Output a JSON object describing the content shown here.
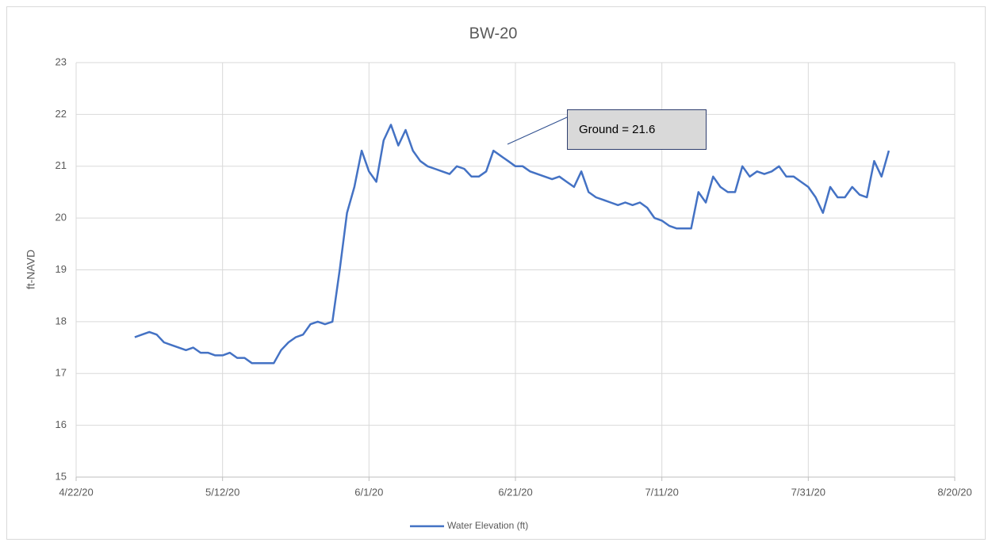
{
  "chart_data": {
    "type": "line",
    "title": "BW-20",
    "ylabel": "ft-NAVD",
    "annotation": "Ground = 21.6",
    "x": [
      "4/30/20",
      "5/1/20",
      "5/2/20",
      "5/3/20",
      "5/4/20",
      "5/5/20",
      "5/6/20",
      "5/7/20",
      "5/8/20",
      "5/9/20",
      "5/10/20",
      "5/11/20",
      "5/12/20",
      "5/13/20",
      "5/14/20",
      "5/15/20",
      "5/16/20",
      "5/17/20",
      "5/18/20",
      "5/19/20",
      "5/20/20",
      "5/21/20",
      "5/22/20",
      "5/23/20",
      "5/24/20",
      "5/25/20",
      "5/26/20",
      "5/27/20",
      "5/28/20",
      "5/29/20",
      "5/30/20",
      "5/31/20",
      "6/1/20",
      "6/2/20",
      "6/3/20",
      "6/4/20",
      "6/5/20",
      "6/6/20",
      "6/7/20",
      "6/8/20",
      "6/9/20",
      "6/10/20",
      "6/11/20",
      "6/12/20",
      "6/13/20",
      "6/14/20",
      "6/15/20",
      "6/16/20",
      "6/17/20",
      "6/18/20",
      "6/19/20",
      "6/20/20",
      "6/21/20",
      "6/22/20",
      "6/23/20",
      "6/24/20",
      "6/25/20",
      "6/26/20",
      "6/27/20",
      "6/28/20",
      "6/29/20",
      "6/30/20",
      "7/1/20",
      "7/2/20",
      "7/3/20",
      "7/4/20",
      "7/5/20",
      "7/6/20",
      "7/7/20",
      "7/8/20",
      "7/9/20",
      "7/10/20",
      "7/11/20",
      "7/12/20",
      "7/13/20",
      "7/14/20",
      "7/15/20",
      "7/16/20",
      "7/17/20",
      "7/18/20",
      "7/19/20",
      "7/20/20",
      "7/21/20",
      "7/22/20",
      "7/23/20",
      "7/24/20",
      "7/25/20",
      "7/26/20",
      "7/27/20",
      "7/28/20",
      "7/29/20",
      "7/30/20",
      "7/31/20",
      "8/1/20",
      "8/2/20",
      "8/3/20",
      "8/4/20",
      "8/5/20",
      "8/6/20",
      "8/7/20",
      "8/8/20",
      "8/9/20",
      "8/10/20",
      "8/11/20"
    ],
    "series": [
      {
        "name": "Water Elevation (ft)",
        "color": "#4472c4",
        "values": [
          17.7,
          17.75,
          17.8,
          17.75,
          17.6,
          17.55,
          17.5,
          17.45,
          17.5,
          17.4,
          17.4,
          17.35,
          17.35,
          17.4,
          17.3,
          17.3,
          17.2,
          17.2,
          17.2,
          17.2,
          17.45,
          17.6,
          17.7,
          17.75,
          17.95,
          18.0,
          17.95,
          18.0,
          19.0,
          20.1,
          20.6,
          21.3,
          20.9,
          20.7,
          21.5,
          21.8,
          21.4,
          21.7,
          21.3,
          21.1,
          21.0,
          20.95,
          20.9,
          20.85,
          21.0,
          20.95,
          20.8,
          20.8,
          20.9,
          21.3,
          21.2,
          21.1,
          21.0,
          21.0,
          20.9,
          20.85,
          20.8,
          20.75,
          20.8,
          20.7,
          20.6,
          20.9,
          20.5,
          20.4,
          20.35,
          20.3,
          20.25,
          20.3,
          20.25,
          20.3,
          20.2,
          20.0,
          19.95,
          19.85,
          19.8,
          19.8,
          19.8,
          20.5,
          20.3,
          20.8,
          20.6,
          20.5,
          20.5,
          21.0,
          20.8,
          20.9,
          20.85,
          20.9,
          21.0,
          20.8,
          20.8,
          20.7,
          20.6,
          20.4,
          20.1,
          20.6,
          20.4,
          20.4,
          20.6,
          20.45,
          20.4,
          21.1,
          20.8,
          21.3
        ]
      }
    ],
    "xlim": [
      "4/22/20",
      "8/20/20"
    ],
    "xticks": [
      "4/22/20",
      "5/12/20",
      "6/1/20",
      "6/21/20",
      "7/11/20",
      "7/31/20",
      "8/20/20"
    ],
    "ylim": [
      15,
      23
    ],
    "yticks": [
      15,
      16,
      17,
      18,
      19,
      20,
      21,
      22,
      23
    ],
    "grid": true,
    "legend": "bottom"
  }
}
